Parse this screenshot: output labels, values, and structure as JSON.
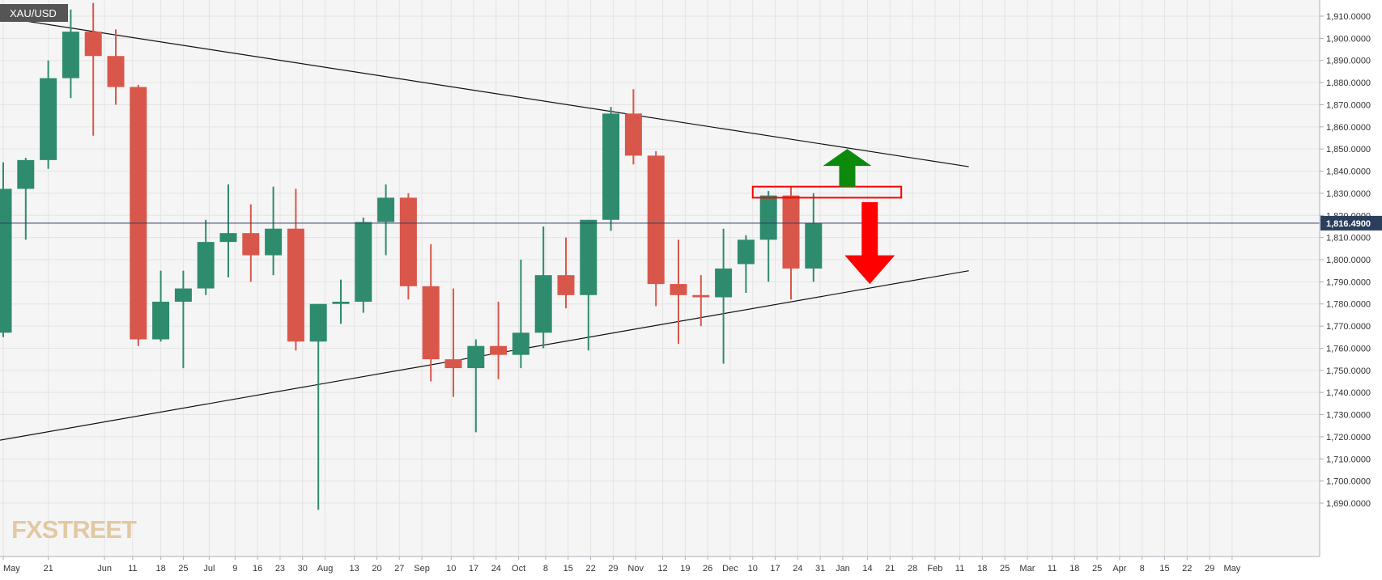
{
  "symbol": "XAU/USD",
  "logo": "FXSTREET",
  "colors": {
    "up": "#2e8b6e",
    "down": "#d9574a",
    "background": "#f5f5f5",
    "grid": "#e4e4e4",
    "price_badge": "#2b3f5c",
    "arrow_up": "#0b8a0b",
    "arrow_down": "#ff0000",
    "box": "#ff0000",
    "trendline": "#111111"
  },
  "chart_data": {
    "type": "candlestick",
    "timeframe": "weekly",
    "ylim": [
      1686,
      1916
    ],
    "x_range": [
      0,
      70.4
    ],
    "y_ticks": [
      1690,
      1700,
      1710,
      1720,
      1730,
      1740,
      1750,
      1760,
      1770,
      1780,
      1790,
      1800,
      1810,
      1820,
      1830,
      1840,
      1850,
      1860,
      1870,
      1880,
      1890,
      1900,
      1910
    ],
    "y_tick_labels": [
      "1,690.0000",
      "1,700.0000",
      "1,710.0000",
      "1,720.0000",
      "1,730.0000",
      "1,740.0000",
      "1,750.0000",
      "1,760.0000",
      "1,770.0000",
      "1,780.0000",
      "1,790.0000",
      "1,800.0000",
      "1,810.0000",
      "1,820.0000",
      "1,830.0000",
      "1,840.0000",
      "1,850.0000",
      "1,860.0000",
      "1,870.0000",
      "1,880.0000",
      "1,890.0000",
      "1,900.0000",
      "1,910.0000"
    ],
    "x_ticks": [
      {
        "i": 0,
        "label": "May"
      },
      {
        "i": 2,
        "label": "21"
      },
      {
        "i": 4.5,
        "label": "Jun"
      },
      {
        "i": 5.75,
        "label": "11"
      },
      {
        "i": 7,
        "label": "18"
      },
      {
        "i": 8,
        "label": "25"
      },
      {
        "i": 9.15,
        "label": "Jul"
      },
      {
        "i": 10.3,
        "label": "9"
      },
      {
        "i": 11.3,
        "label": "16"
      },
      {
        "i": 12.3,
        "label": "23"
      },
      {
        "i": 13.3,
        "label": "30"
      },
      {
        "i": 14.3,
        "label": "Aug"
      },
      {
        "i": 15.6,
        "label": "13"
      },
      {
        "i": 16.6,
        "label": "20"
      },
      {
        "i": 17.6,
        "label": "27"
      },
      {
        "i": 18.6,
        "label": "Sep"
      },
      {
        "i": 19.9,
        "label": "10"
      },
      {
        "i": 20.9,
        "label": "17"
      },
      {
        "i": 21.9,
        "label": "24"
      },
      {
        "i": 22.9,
        "label": "Oct"
      },
      {
        "i": 24.1,
        "label": "8"
      },
      {
        "i": 25.1,
        "label": "15"
      },
      {
        "i": 26.1,
        "label": "22"
      },
      {
        "i": 27.1,
        "label": "29"
      },
      {
        "i": 28.1,
        "label": "Nov"
      },
      {
        "i": 29.3,
        "label": "12"
      },
      {
        "i": 30.3,
        "label": "19"
      },
      {
        "i": 31.3,
        "label": "26"
      },
      {
        "i": 32.3,
        "label": "Dec"
      },
      {
        "i": 33.3,
        "label": "10"
      },
      {
        "i": 34.3,
        "label": "17"
      },
      {
        "i": 35.3,
        "label": "24"
      },
      {
        "i": 36.3,
        "label": "31"
      },
      {
        "i": 37.3,
        "label": "Jan"
      },
      {
        "i": 38.4,
        "label": "14"
      },
      {
        "i": 39.4,
        "label": "21"
      },
      {
        "i": 40.4,
        "label": "28"
      },
      {
        "i": 41.4,
        "label": "Feb"
      },
      {
        "i": 42.5,
        "label": "11"
      },
      {
        "i": 43.5,
        "label": "18"
      },
      {
        "i": 44.5,
        "label": "25"
      },
      {
        "i": 45.5,
        "label": "Mar"
      },
      {
        "i": 46.6,
        "label": "11"
      },
      {
        "i": 47.6,
        "label": "18"
      },
      {
        "i": 48.6,
        "label": "25"
      },
      {
        "i": 49.6,
        "label": "Apr"
      },
      {
        "i": 50.6,
        "label": "8"
      },
      {
        "i": 51.6,
        "label": "15"
      },
      {
        "i": 52.6,
        "label": "22"
      },
      {
        "i": 53.6,
        "label": "29"
      },
      {
        "i": 54.6,
        "label": "May"
      }
    ],
    "candles": [
      {
        "i": 0,
        "o": 1767,
        "h": 1844,
        "l": 1765,
        "c": 1832
      },
      {
        "i": 1,
        "o": 1832,
        "h": 1846,
        "l": 1809,
        "c": 1845
      },
      {
        "i": 2,
        "o": 1845,
        "h": 1890,
        "l": 1841,
        "c": 1882
      },
      {
        "i": 3,
        "o": 1882,
        "h": 1913,
        "l": 1873,
        "c": 1903
      },
      {
        "i": 4,
        "o": 1903,
        "h": 1916,
        "l": 1856,
        "c": 1892
      },
      {
        "i": 5,
        "o": 1892,
        "h": 1904,
        "l": 1870,
        "c": 1878
      },
      {
        "i": 6,
        "o": 1878,
        "h": 1879,
        "l": 1761,
        "c": 1764
      },
      {
        "i": 7,
        "o": 1764,
        "h": 1795,
        "l": 1763,
        "c": 1781
      },
      {
        "i": 8,
        "o": 1781,
        "h": 1795,
        "l": 1751,
        "c": 1787
      },
      {
        "i": 9,
        "o": 1787,
        "h": 1818,
        "l": 1784,
        "c": 1808
      },
      {
        "i": 10,
        "o": 1808,
        "h": 1834,
        "l": 1792,
        "c": 1812
      },
      {
        "i": 11,
        "o": 1812,
        "h": 1825,
        "l": 1790,
        "c": 1802
      },
      {
        "i": 12,
        "o": 1802,
        "h": 1833,
        "l": 1793,
        "c": 1814
      },
      {
        "i": 13,
        "o": 1814,
        "h": 1832,
        "l": 1759,
        "c": 1763
      },
      {
        "i": 14,
        "o": 1763,
        "h": 1780,
        "l": 1687,
        "c": 1780
      },
      {
        "i": 15,
        "o": 1780,
        "h": 1791,
        "l": 1771,
        "c": 1781
      },
      {
        "i": 16,
        "o": 1781,
        "h": 1819,
        "l": 1776,
        "c": 1817
      },
      {
        "i": 17,
        "o": 1817,
        "h": 1834,
        "l": 1802,
        "c": 1828
      },
      {
        "i": 18,
        "o": 1828,
        "h": 1830,
        "l": 1782,
        "c": 1788
      },
      {
        "i": 19,
        "o": 1788,
        "h": 1807,
        "l": 1745,
        "c": 1755
      },
      {
        "i": 20,
        "o": 1755,
        "h": 1787,
        "l": 1738,
        "c": 1751
      },
      {
        "i": 21,
        "o": 1751,
        "h": 1764,
        "l": 1722,
        "c": 1761
      },
      {
        "i": 22,
        "o": 1761,
        "h": 1781,
        "l": 1746,
        "c": 1757
      },
      {
        "i": 23,
        "o": 1757,
        "h": 1800,
        "l": 1751,
        "c": 1767
      },
      {
        "i": 24,
        "o": 1767,
        "h": 1815,
        "l": 1760,
        "c": 1793
      },
      {
        "i": 25,
        "o": 1793,
        "h": 1810,
        "l": 1778,
        "c": 1784
      },
      {
        "i": 26,
        "o": 1784,
        "h": 1818,
        "l": 1759,
        "c": 1818
      },
      {
        "i": 27,
        "o": 1818,
        "h": 1869,
        "l": 1813,
        "c": 1866
      },
      {
        "i": 28,
        "o": 1866,
        "h": 1877,
        "l": 1843,
        "c": 1847
      },
      {
        "i": 29,
        "o": 1847,
        "h": 1849,
        "l": 1779,
        "c": 1789
      },
      {
        "i": 30,
        "o": 1789,
        "h": 1809,
        "l": 1762,
        "c": 1784
      },
      {
        "i": 31,
        "o": 1784,
        "h": 1793,
        "l": 1770,
        "c": 1783
      },
      {
        "i": 32,
        "o": 1783,
        "h": 1814,
        "l": 1753,
        "c": 1796
      },
      {
        "i": 33,
        "o": 1798,
        "h": 1811,
        "l": 1785,
        "c": 1809
      },
      {
        "i": 34,
        "o": 1809,
        "h": 1831,
        "l": 1790,
        "c": 1829
      },
      {
        "i": 35,
        "o": 1829,
        "h": 1833,
        "l": 1782,
        "c": 1796
      },
      {
        "i": 36,
        "o": 1796,
        "h": 1830,
        "l": 1790,
        "c": 1816.49
      }
    ],
    "current_price": 1816.49,
    "current_price_label": "1,816.4900",
    "trendlines": [
      {
        "name": "resistance",
        "from": {
          "i": -0.4,
          "y": 1910
        },
        "to": {
          "i": 42.9,
          "y": 1842
        }
      },
      {
        "name": "support",
        "from": {
          "i": -0.4,
          "y": 1718
        },
        "to": {
          "i": 42.9,
          "y": 1795
        }
      }
    ],
    "annotations": {
      "box": {
        "i_start": 33.3,
        "i_end": 39.9,
        "y_top": 1833,
        "y_bottom": 1828
      },
      "arrow_up": {
        "i": 37.5,
        "y_base": 1833,
        "y_tip": 1850
      },
      "arrow_down": {
        "i": 38.5,
        "y_base": 1826,
        "y_tip": 1789
      }
    }
  }
}
